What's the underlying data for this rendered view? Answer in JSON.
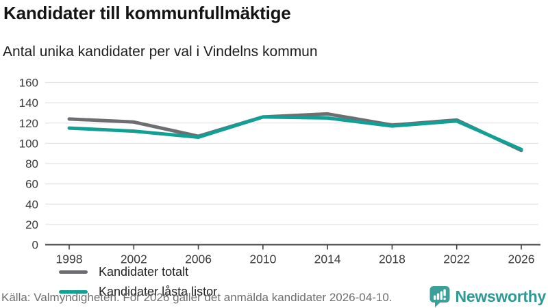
{
  "header": {
    "title": "Kandidater till kommunfullmäktige",
    "subtitle": "Antal unika kandidater per val i Vindelns kommun"
  },
  "chart_data": {
    "type": "line",
    "title": "Kandidater till kommunfullmäktige",
    "subtitle": "Antal unika kandidater per val i Vindelns kommun",
    "x": [
      1998,
      2002,
      2006,
      2010,
      2014,
      2018,
      2022,
      2026
    ],
    "series": [
      {
        "name": "Kandidater totalt",
        "color": "#6d6e71",
        "values": [
          124,
          121,
          107,
          126,
          129,
          118,
          123,
          93
        ]
      },
      {
        "name": "Kandidater låsta listor",
        "color": "#11a096",
        "values": [
          115,
          112,
          106,
          126,
          125,
          117,
          122,
          94
        ]
      }
    ],
    "xlabel": "",
    "ylabel": "",
    "ylim": [
      0,
      160
    ],
    "yticks": [
      0,
      20,
      40,
      60,
      80,
      100,
      120,
      140,
      160
    ],
    "grid": true,
    "legend_position": "inside-bottom-left"
  },
  "footer": {
    "source": "Källa: Valmyndigheten. För 2026 gäller det anmälda kandidater 2026-04-10.",
    "brand": "Newsworthy"
  },
  "colors": {
    "line_gray": "#6d6e71",
    "line_teal": "#11a096",
    "axis": "#404040",
    "gridline": "#e4e4e4",
    "tick_label": "#3a3a3a",
    "brand_teal": "#2e9a96",
    "logo_bubble": "#3d9f99"
  }
}
